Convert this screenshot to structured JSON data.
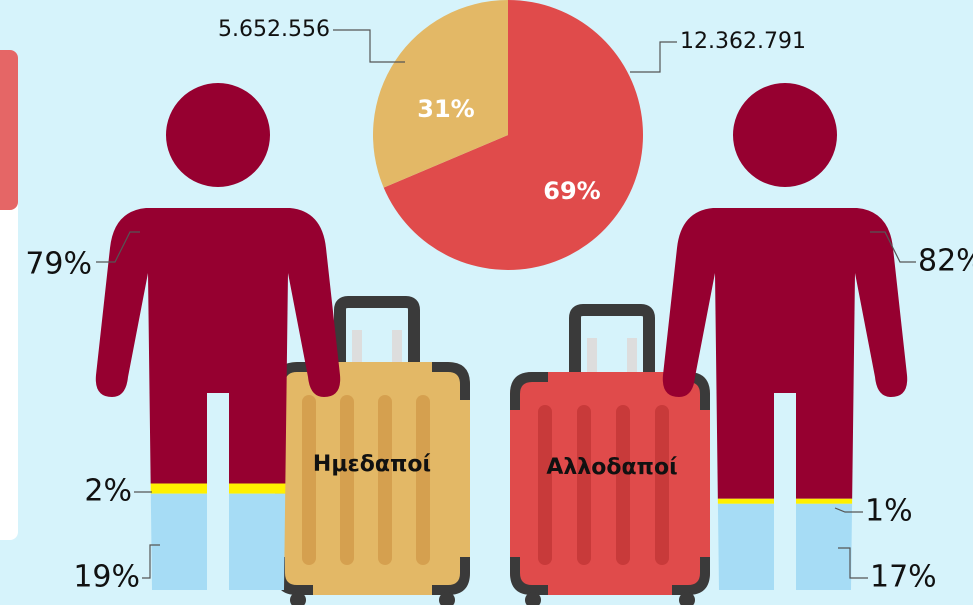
{
  "chart_data": [
    {
      "type": "pie",
      "categories": [
        "Ημεδαποί",
        "Αλλοδαποί"
      ],
      "values": [
        5652556,
        12362791
      ],
      "value_labels": [
        "5.652.556",
        "12.362.791"
      ],
      "percents": [
        31,
        69
      ],
      "percent_labels": [
        "31%",
        "69%"
      ],
      "colors": [
        "#e3b866",
        "#e04b4b"
      ]
    },
    {
      "type": "pictograph",
      "values": [
        79,
        2,
        19
      ],
      "value_labels": [
        "79%",
        "2%",
        "19%"
      ],
      "colors": [
        "#960030",
        "#fff000",
        "#a6dcf5"
      ]
    },
    {
      "type": "pictograph",
      "values": [
        82,
        1,
        17
      ],
      "value_labels": [
        "82%",
        "1%",
        "17%"
      ],
      "colors": [
        "#960030",
        "#fff000",
        "#a6dcf5"
      ]
    }
  ]
}
